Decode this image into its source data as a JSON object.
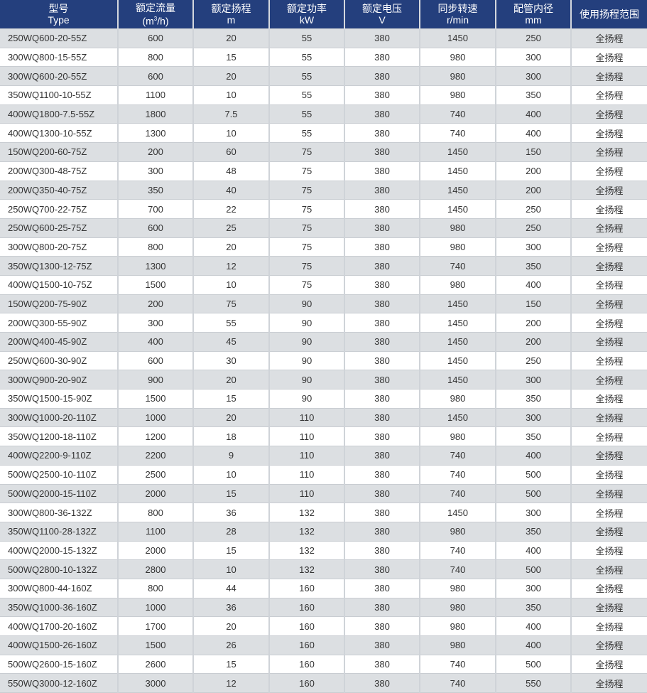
{
  "header": {
    "type_cn": "型号",
    "type_en": "Type",
    "flow_cn": "额定流量",
    "flow_unit_pre": "(m",
    "flow_unit_sup": "3",
    "flow_unit_post": "/h)",
    "head_cn": "额定扬程",
    "head_unit": "m",
    "power_cn": "额定功率",
    "power_unit": "kW",
    "voltage_cn": "额定电压",
    "voltage_unit": "V",
    "speed_cn": "同步转速",
    "speed_unit": "r/min",
    "pipe_cn": "配管内径",
    "pipe_unit": "mm",
    "range_cn": "使用扬程范围"
  },
  "colors": {
    "header_bg": "#243f7d",
    "row_alt": "#dcdfe2",
    "row_plain": "#ffffff"
  },
  "rows": [
    [
      "250WQ600-20-55Z",
      "600",
      "20",
      "55",
      "380",
      "1450",
      "250",
      "全扬程"
    ],
    [
      "300WQ800-15-55Z",
      "800",
      "15",
      "55",
      "380",
      "980",
      "300",
      "全扬程"
    ],
    [
      "300WQ600-20-55Z",
      "600",
      "20",
      "55",
      "380",
      "980",
      "300",
      "全扬程"
    ],
    [
      "350WQ1100-10-55Z",
      "1100",
      "10",
      "55",
      "380",
      "980",
      "350",
      "全扬程"
    ],
    [
      "400WQ1800-7.5-55Z",
      "1800",
      "7.5",
      "55",
      "380",
      "740",
      "400",
      "全扬程"
    ],
    [
      "400WQ1300-10-55Z",
      "1300",
      "10",
      "55",
      "380",
      "740",
      "400",
      "全扬程"
    ],
    [
      "150WQ200-60-75Z",
      "200",
      "60",
      "75",
      "380",
      "1450",
      "150",
      "全扬程"
    ],
    [
      "200WQ300-48-75Z",
      "300",
      "48",
      "75",
      "380",
      "1450",
      "200",
      "全扬程"
    ],
    [
      "200WQ350-40-75Z",
      "350",
      "40",
      "75",
      "380",
      "1450",
      "200",
      "全扬程"
    ],
    [
      "250WQ700-22-75Z",
      "700",
      "22",
      "75",
      "380",
      "1450",
      "250",
      "全扬程"
    ],
    [
      "250WQ600-25-75Z",
      "600",
      "25",
      "75",
      "380",
      "980",
      "250",
      "全扬程"
    ],
    [
      "300WQ800-20-75Z",
      "800",
      "20",
      "75",
      "380",
      "980",
      "300",
      "全扬程"
    ],
    [
      "350WQ1300-12-75Z",
      "1300",
      "12",
      "75",
      "380",
      "740",
      "350",
      "全扬程"
    ],
    [
      "400WQ1500-10-75Z",
      "1500",
      "10",
      "75",
      "380",
      "980",
      "400",
      "全扬程"
    ],
    [
      "150WQ200-75-90Z",
      "200",
      "75",
      "90",
      "380",
      "1450",
      "150",
      "全扬程"
    ],
    [
      "200WQ300-55-90Z",
      "300",
      "55",
      "90",
      "380",
      "1450",
      "200",
      "全扬程"
    ],
    [
      "200WQ400-45-90Z",
      "400",
      "45",
      "90",
      "380",
      "1450",
      "200",
      "全扬程"
    ],
    [
      "250WQ600-30-90Z",
      "600",
      "30",
      "90",
      "380",
      "1450",
      "250",
      "全扬程"
    ],
    [
      "300WQ900-20-90Z",
      "900",
      "20",
      "90",
      "380",
      "1450",
      "300",
      "全扬程"
    ],
    [
      "350WQ1500-15-90Z",
      "1500",
      "15",
      "90",
      "380",
      "980",
      "350",
      "全扬程"
    ],
    [
      "300WQ1000-20-110Z",
      "1000",
      "20",
      "110",
      "380",
      "1450",
      "300",
      "全扬程"
    ],
    [
      "350WQ1200-18-110Z",
      "1200",
      "18",
      "110",
      "380",
      "980",
      "350",
      "全扬程"
    ],
    [
      "400WQ2200-9-110Z",
      "2200",
      "9",
      "110",
      "380",
      "740",
      "400",
      "全扬程"
    ],
    [
      "500WQ2500-10-110Z",
      "2500",
      "10",
      "110",
      "380",
      "740",
      "500",
      "全扬程"
    ],
    [
      "500WQ2000-15-110Z",
      "2000",
      "15",
      "110",
      "380",
      "740",
      "500",
      "全扬程"
    ],
    [
      "300WQ800-36-132Z",
      "800",
      "36",
      "132",
      "380",
      "1450",
      "300",
      "全扬程"
    ],
    [
      "350WQ1100-28-132Z",
      "1100",
      "28",
      "132",
      "380",
      "980",
      "350",
      "全扬程"
    ],
    [
      "400WQ2000-15-132Z",
      "2000",
      "15",
      "132",
      "380",
      "740",
      "400",
      "全扬程"
    ],
    [
      "500WQ2800-10-132Z",
      "2800",
      "10",
      "132",
      "380",
      "740",
      "500",
      "全扬程"
    ],
    [
      "300WQ800-44-160Z",
      "800",
      "44",
      "160",
      "380",
      "980",
      "300",
      "全扬程"
    ],
    [
      "350WQ1000-36-160Z",
      "1000",
      "36",
      "160",
      "380",
      "980",
      "350",
      "全扬程"
    ],
    [
      "400WQ1700-20-160Z",
      "1700",
      "20",
      "160",
      "380",
      "980",
      "400",
      "全扬程"
    ],
    [
      "400WQ1500-26-160Z",
      "1500",
      "26",
      "160",
      "380",
      "980",
      "400",
      "全扬程"
    ],
    [
      "500WQ2600-15-160Z",
      "2600",
      "15",
      "160",
      "380",
      "740",
      "500",
      "全扬程"
    ],
    [
      "550WQ3000-12-160Z",
      "3000",
      "12",
      "160",
      "380",
      "740",
      "550",
      "全扬程"
    ]
  ]
}
